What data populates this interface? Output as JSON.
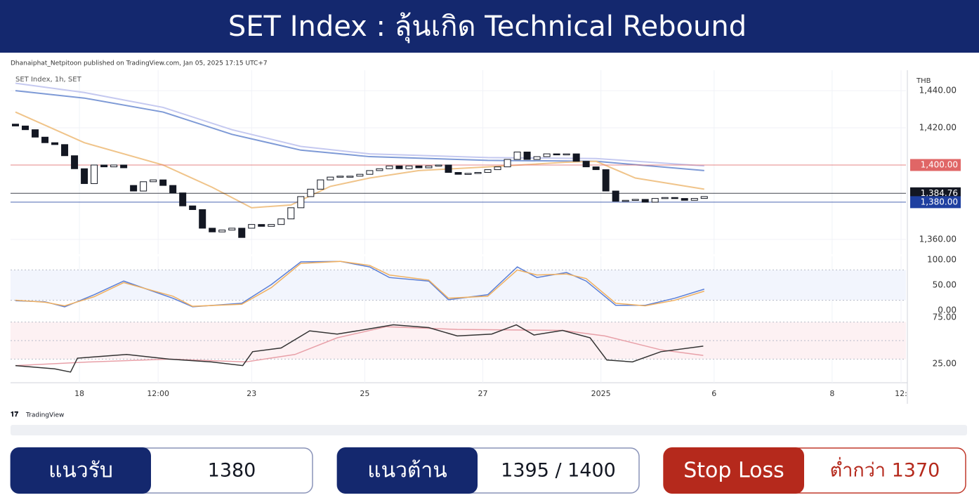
{
  "header": {
    "title": "SET Index : ลุ้นเกิด Technical Rebound"
  },
  "attribution": "Dhanaiphat_Netpitoon published on TradingView.com, Jan 05, 2025 17:15 UTC+7",
  "brand": "TradingView",
  "chart_data": [
    {
      "type": "candlestick",
      "title": "SET Index, 1h, SET",
      "unit_label": "THB",
      "x": [
        0,
        1,
        2,
        3,
        4,
        5,
        6,
        7,
        8,
        9,
        10,
        11,
        12,
        13,
        14,
        15,
        16,
        17,
        18,
        19,
        20,
        21,
        22,
        23,
        24,
        25,
        26,
        27,
        28,
        29,
        30,
        31,
        32,
        33,
        34,
        35,
        36,
        37,
        38,
        39,
        40,
        41,
        42,
        43,
        44,
        45,
        46,
        47,
        48,
        49,
        50,
        51,
        52,
        53,
        54,
        55,
        56,
        57,
        58,
        59,
        60,
        61,
        62,
        63,
        64,
        65,
        66,
        67,
        68,
        69,
        70
      ],
      "opens": [
        1422,
        1421,
        1419,
        1415,
        1412,
        1411,
        1405,
        1398,
        1390,
        1400,
        1399,
        1400,
        1389,
        1386,
        1391,
        1392,
        1389,
        1385,
        1378,
        1376,
        1366,
        1364,
        1365,
        1366,
        1366,
        1368,
        1367,
        1368,
        1371,
        1377,
        1383,
        1387,
        1392,
        1393.5,
        1394,
        1394,
        1395,
        1397,
        1398,
        1399.5,
        1398,
        1399.5,
        1398.5,
        1399.5,
        1400,
        1396,
        1395,
        1395.5,
        1396,
        1397.5,
        1399,
        1403,
        1407,
        1403,
        1404.5,
        1406,
        1405.5,
        1406,
        1402,
        1399,
        1397.5,
        1386,
        1380.5,
        1381,
        1381.5,
        1380,
        1382,
        1382.5,
        1382,
        1381,
        1382
      ],
      "closes": [
        1421,
        1419,
        1415,
        1412,
        1411,
        1405,
        1398,
        1390,
        1400,
        1399,
        1400,
        1398.5,
        1386,
        1391,
        1392,
        1389,
        1385,
        1378,
        1376,
        1366,
        1364,
        1365,
        1366,
        1361,
        1368,
        1367,
        1368,
        1371,
        1377,
        1383,
        1387,
        1392,
        1393.5,
        1394,
        1394,
        1395,
        1397,
        1398,
        1399.5,
        1398,
        1399.5,
        1398.5,
        1399.5,
        1400,
        1396,
        1395,
        1395.5,
        1396,
        1397.5,
        1399,
        1403,
        1407,
        1403,
        1404.5,
        1406,
        1405.5,
        1406,
        1402,
        1399,
        1397.5,
        1386,
        1380.5,
        1381,
        1381.5,
        1380,
        1382,
        1382.5,
        1382,
        1381,
        1382,
        1383
      ],
      "series": [
        {
          "color": "#c5c9f0",
          "x": [
            0,
            7,
            15,
            22,
            29,
            36,
            48,
            59,
            70
          ],
          "values": [
            1444,
            1439,
            1431,
            1419,
            1410,
            1406,
            1404,
            1403.5,
            1399.5
          ]
        },
        {
          "color": "#7e9ad6",
          "x": [
            0,
            7,
            15,
            22,
            29,
            36,
            48,
            59,
            70
          ],
          "values": [
            1440,
            1436,
            1428.5,
            1416.5,
            1408,
            1404.5,
            1402.5,
            1402,
            1397
          ]
        },
        {
          "color": "#f0c48a",
          "x": [
            0,
            7,
            15,
            20,
            24,
            28,
            32,
            36,
            41,
            48,
            56,
            59,
            63,
            70
          ],
          "values": [
            1428.5,
            1412,
            1400,
            1388,
            1377,
            1378.5,
            1388.5,
            1393,
            1397,
            1399,
            1401.5,
            1402,
            1393,
            1387
          ]
        }
      ],
      "price_lines": [
        {
          "value": 1400,
          "label": "1,400.00",
          "color": "#e06666"
        },
        {
          "value": 1384.76,
          "label": "1,384.76",
          "color": "#131722"
        },
        {
          "value": 1380,
          "label": "1,380.00",
          "color": "#1e3fa0"
        }
      ],
      "xlim": [
        -0.5,
        90.5
      ],
      "ylim": [
        1352,
        1451
      ],
      "yticks": [
        {
          "value": 1360,
          "label": "1,360.00"
        },
        {
          "value": 1420,
          "label": "1,420.00"
        },
        {
          "value": 1440,
          "label": "1,440.00"
        }
      ],
      "grid": true
    },
    {
      "type": "line",
      "xlim": [
        -0.5,
        90.5
      ],
      "ylim": [
        -14,
        107
      ],
      "hlines": [
        20,
        80
      ],
      "yticks": [
        {
          "value": 0,
          "label": "0.00"
        },
        {
          "value": 50,
          "label": "50.00"
        },
        {
          "value": 100,
          "label": "100.00"
        }
      ],
      "series": [
        {
          "color": "#5b7fd6",
          "x": [
            0,
            3,
            5,
            8,
            11,
            16,
            18,
            23,
            26,
            29,
            33,
            36,
            38,
            42,
            44,
            48,
            51,
            53,
            56,
            58,
            61,
            64,
            67,
            70
          ],
          "values": [
            19,
            17,
            7,
            31,
            58,
            24,
            7,
            14,
            51,
            96,
            97,
            86,
            65,
            58,
            21,
            31,
            86,
            65,
            75,
            58,
            10,
            10,
            24,
            42
          ]
        },
        {
          "color": "#f0b060",
          "x": [
            0,
            3,
            5,
            8,
            11,
            16,
            18,
            23,
            26,
            29,
            33,
            36,
            38,
            42,
            44,
            48,
            51,
            53,
            56,
            58,
            61,
            64,
            67,
            70
          ],
          "values": [
            20,
            16,
            9,
            27,
            55,
            28,
            8,
            12,
            45,
            93,
            97,
            89,
            70,
            60,
            24,
            28,
            80,
            70,
            72,
            63,
            14,
            9,
            20,
            38
          ]
        }
      ]
    },
    {
      "type": "line",
      "xlim": [
        -0.5,
        90.5
      ],
      "ylim": [
        4.5,
        75
      ],
      "hlines": [
        30,
        50,
        70
      ],
      "yticks": [
        {
          "value": 25,
          "label": "25.00"
        },
        {
          "value": 75,
          "label": "75.00"
        }
      ],
      "xticks": [
        {
          "value": 6.5,
          "label": "18"
        },
        {
          "value": 14.5,
          "label": "12:00"
        },
        {
          "value": 24,
          "label": "23"
        },
        {
          "value": 35.5,
          "label": "25"
        },
        {
          "value": 47.5,
          "label": "27"
        },
        {
          "value": 59.5,
          "label": "2025"
        },
        {
          "value": 71,
          "label": "6"
        },
        {
          "value": 83,
          "label": "8"
        },
        {
          "value": 90,
          "label": "12:"
        }
      ],
      "series": [
        {
          "color": "#e8a0a8",
          "x": [
            0,
            7.7,
            15.6,
            23.4,
            28.4,
            32.7,
            37.7,
            44.9,
            55.6,
            59.9,
            65.6,
            69.9
          ],
          "values": [
            23,
            27,
            30,
            27,
            35,
            53,
            65,
            62,
            61,
            55,
            40,
            34
          ]
        },
        {
          "color": "#333333",
          "x": [
            0,
            4,
            5.6,
            6.3,
            11.3,
            15.6,
            19.9,
            23.1,
            24.1,
            27,
            29.9,
            32.7,
            35.6,
            38.4,
            42,
            44.9,
            48.4,
            50.9,
            52.7,
            55.6,
            58.4,
            60.1,
            62.7,
            65.6,
            69.9
          ],
          "values": [
            23,
            19.5,
            16,
            31,
            35,
            30,
            27,
            23,
            38,
            42,
            60.5,
            57,
            62,
            67,
            64,
            55,
            57,
            67,
            56,
            61,
            53,
            29,
            27,
            38,
            44
          ]
        }
      ]
    }
  ],
  "levels": [
    {
      "label": "แนวรับ",
      "value": "1380"
    },
    {
      "label": "แนวต้าน",
      "value": "1395 / 1400"
    },
    {
      "label": "Stop Loss",
      "value": "ต่ำกว่า 1370"
    }
  ]
}
